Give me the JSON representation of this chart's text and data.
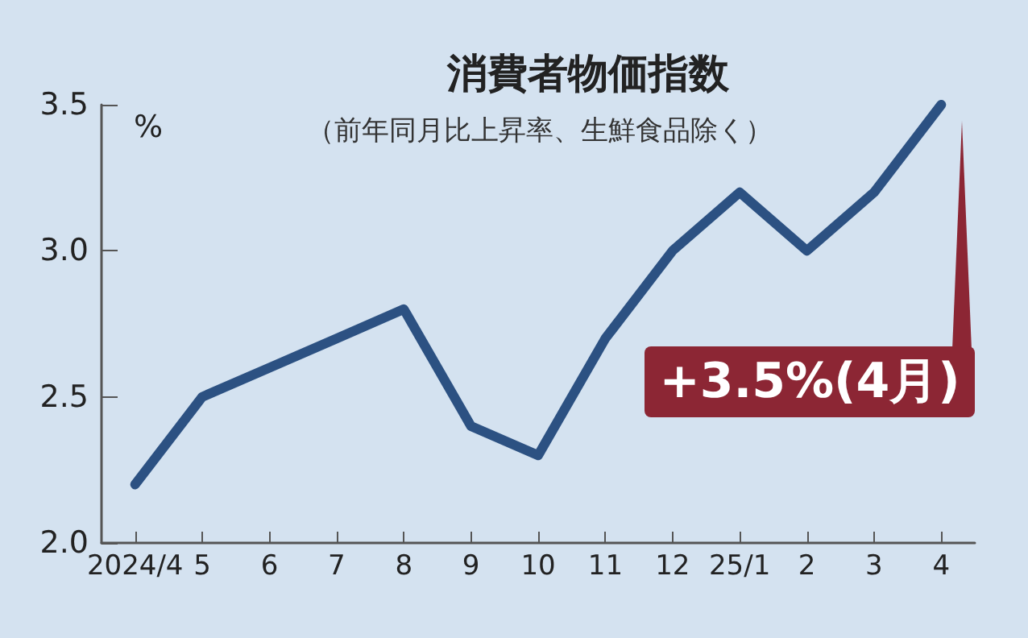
{
  "chart_data": {
    "type": "line",
    "title": "消費者物価指数",
    "subtitle": "（前年同月比上昇率、生鮮食品除く）",
    "ylabel": "%",
    "categories": [
      "2024/4",
      "5",
      "6",
      "7",
      "8",
      "9",
      "10",
      "11",
      "12",
      "25/1",
      "2",
      "3",
      "4"
    ],
    "series": [
      {
        "color": "#2c5182",
        "values": [
          2.2,
          2.5,
          2.6,
          2.7,
          2.8,
          2.4,
          2.3,
          2.7,
          3.0,
          3.2,
          3.0,
          3.2,
          3.5
        ]
      }
    ],
    "ylim": [
      2.0,
      3.5
    ],
    "yticks": [
      {
        "value": 2.0,
        "label": "2.0"
      },
      {
        "value": 2.5,
        "label": "2.5"
      },
      {
        "value": 3.0,
        "label": "3.0"
      },
      {
        "value": 3.5,
        "label": "3.5"
      }
    ],
    "annotations": [
      "+3.5%(4月)"
    ],
    "grid": false,
    "marker": "none",
    "line_style": "solid"
  }
}
